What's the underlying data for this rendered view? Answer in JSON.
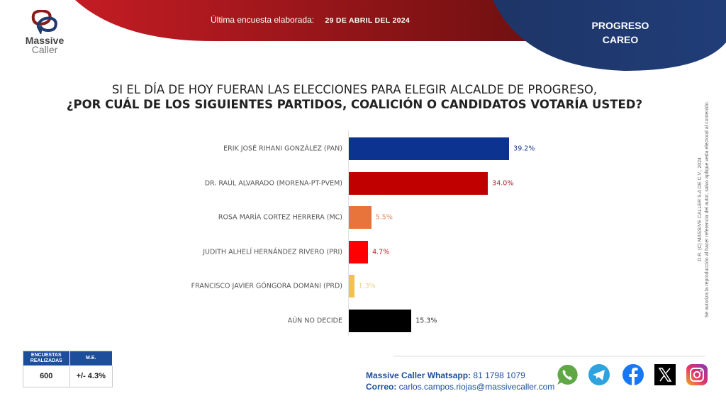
{
  "brand": {
    "name_line1": "Massive",
    "name_line2": "Caller",
    "colors": {
      "red": "#b31b22",
      "navy": "#1e3a6e",
      "blue_header": "#1d4e9c"
    }
  },
  "header": {
    "last_survey_label": "Última encuesta elaborada:",
    "last_survey_date": "29 DE ABRIL DEL 2024",
    "region_line1": "PROGRESO",
    "region_line2": "CAREO"
  },
  "question": {
    "line1": "SI EL DÍA DE HOY FUERAN LAS ELECCIONES PARA ELEGIR ALCALDE DE PROGRESO,",
    "line2": "¿POR CUÁL DE LOS SIGUIENTES PARTIDOS, COALICIÓN O CANDIDATOS VOTARÍA USTED?"
  },
  "chart_data": {
    "type": "bar",
    "orientation": "horizontal",
    "title": "¿Por cuál de los siguientes partidos, coalición o candidatos votaría usted?",
    "xlabel": "",
    "ylabel": "",
    "xlim": [
      0,
      40
    ],
    "grid": false,
    "categories": [
      "ERIK JOSÉ RIHANI GONZÁLEZ (PAN)",
      "DR. RAÚL ALVARADO (MORENA-PT-PVEM)",
      "ROSA MARÍA CORTEZ HERRERA (MC)",
      "JUDITH ALHELÍ HERNÁNDEZ RIVERO (PRI)",
      "FRANCISCO JAVIER GÓNGORA DOMANI (PRD)",
      "AÚN NO DECIDE"
    ],
    "values": [
      39.2,
      34.0,
      5.5,
      4.7,
      1.3,
      15.3
    ],
    "value_labels": [
      "39.2%",
      "34.0%",
      "5.5%",
      "4.7%",
      "1.3%",
      "15.3%"
    ],
    "bar_colors": [
      "#0d3391",
      "#c00000",
      "#e8743b",
      "#ff0000",
      "#f2c14e",
      "#000000"
    ],
    "label_colors": [
      "#1d3f8f",
      "#b8202a",
      "#e08a5a",
      "#c8202a",
      "#e8cf8a",
      "#333333"
    ]
  },
  "legal": {
    "line1": "D.R. (C) MASSIVE CALLER S.A DE C.V., 2024",
    "line2": "Se autoriza la reproducción al hacer referencia del autor, salvo aplique veda electoral al contenido."
  },
  "stats": {
    "col1_header_line1": "ENCUESTAS",
    "col1_header_line2": "REALIZADAS",
    "col2_header": "M.E.",
    "surveys": "600",
    "margin_error": "+/- 4.3%"
  },
  "contact": {
    "whatsapp_label": "Massive Caller Whatsapp:",
    "whatsapp_number": " 81 1798 1079",
    "email_label": "Correo:",
    "email": " carlos.campos.riojas@massivecaller.com"
  },
  "social": [
    {
      "name": "whatsapp-icon",
      "color": "#5fa845"
    },
    {
      "name": "telegram-icon",
      "color": "#2ea3dd"
    },
    {
      "name": "facebook-icon",
      "color": "#1877f2"
    },
    {
      "name": "x-icon",
      "color": "#000000"
    },
    {
      "name": "instagram-icon",
      "color": "#d6337a"
    }
  ]
}
